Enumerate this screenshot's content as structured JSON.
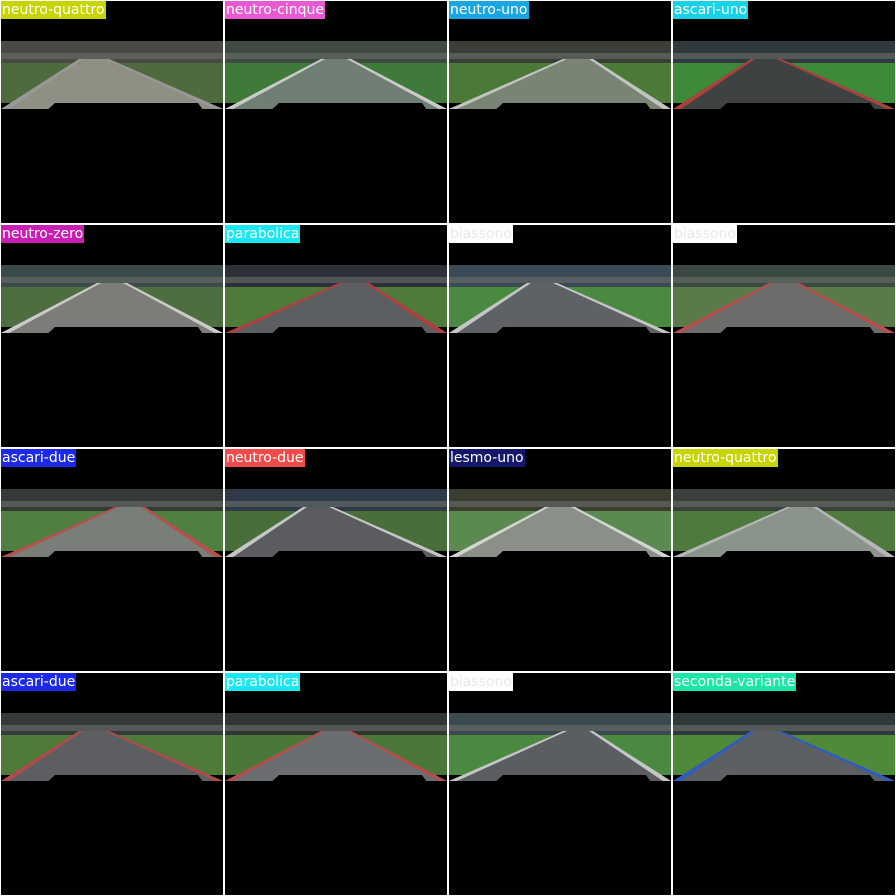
{
  "tiles": [
    {
      "label": "neutro-quattro",
      "label_bg": "#c8d400",
      "label_fg": "#ffffff",
      "road": "#8f8f84",
      "grass": "#4f6b3e",
      "sky": "#4a4a44",
      "curb": "#9a9a9a"
    },
    {
      "label": "neutro-cinque",
      "label_bg": "#e85ad2",
      "label_fg": "#ffffff",
      "road": "#6f7f74",
      "grass": "#3f7a3a",
      "sky": "#3f4a40",
      "curb": "#d8d8d8"
    },
    {
      "label": "neutro-uno",
      "label_bg": "#1aa6e0",
      "label_fg": "#ffffff",
      "road": "#7a8474",
      "grass": "#4a7a36",
      "sky": "#3a3f36",
      "curb": "#cfcfcf"
    },
    {
      "label": "ascari-uno",
      "label_bg": "#18d2e8",
      "label_fg": "#ffffff",
      "road": "#3e4242",
      "grass": "#3f8a3a",
      "sky": "#2e3a3e",
      "curb": "#c0403a"
    },
    {
      "label": "neutro-zero",
      "label_bg": "#c81eb4",
      "label_fg": "#ffffff",
      "road": "#7c7c78",
      "grass": "#4e6e40",
      "sky": "#3a4a4a",
      "curb": "#d8d8d8"
    },
    {
      "label": "parabolica",
      "label_bg": "#1ce6f0",
      "label_fg": "#ffffff",
      "road": "#5c5f62",
      "grass": "#4f7a3a",
      "sky": "#2c3038",
      "curb": "#c03a3a"
    },
    {
      "label": "biassono",
      "label_bg": "#ffffff",
      "label_fg": "#e8e8e8",
      "road": "#5e6266",
      "grass": "#4a8a40",
      "sky": "#3a4a56",
      "curb": "#d8d8d8"
    },
    {
      "label": "biassono",
      "label_bg": "#ffffff",
      "label_fg": "#e8e8e8",
      "road": "#6c6c6a",
      "grass": "#5a7a48",
      "sky": "#3a4a40",
      "curb": "#c84848"
    },
    {
      "label": "ascari-due",
      "label_bg": "#1a2ae6",
      "label_fg": "#ffffff",
      "road": "#7a7e78",
      "grass": "#4f8040",
      "sky": "#343a36",
      "curb": "#c04848"
    },
    {
      "label": "neutro-due",
      "label_bg": "#f04a4a",
      "label_fg": "#ffffff",
      "road": "#5a5c60",
      "grass": "#4a6e3a",
      "sky": "#2e3a48",
      "curb": "#d8d8d8"
    },
    {
      "label": "lesmo-uno",
      "label_bg": "#14186a",
      "label_fg": "#ffffff",
      "road": "#8a9088",
      "grass": "#5a8a50",
      "sky": "#3a3e2e",
      "curb": "#e0e0e0"
    },
    {
      "label": "neutro-quattro",
      "label_bg": "#c8d400",
      "label_fg": "#ffffff",
      "road": "#8a948a",
      "grass": "#4e7a3e",
      "sky": "#3a403a",
      "curb": "#bdbdbd"
    },
    {
      "label": "ascari-due",
      "label_bg": "#1a2ae6",
      "label_fg": "#ffffff",
      "road": "#5c5e62",
      "grass": "#4f7a3a",
      "sky": "#343a3a",
      "curb": "#c04848"
    },
    {
      "label": "parabolica",
      "label_bg": "#1ce6f0",
      "label_fg": "#ffffff",
      "road": "#6a6e70",
      "grass": "#4a7838",
      "sky": "#303634",
      "curb": "#c04848"
    },
    {
      "label": "biassono",
      "label_bg": "#ffffff",
      "label_fg": "#e8e8e8",
      "road": "#5a5e60",
      "grass": "#4a8a40",
      "sky": "#3a4a50",
      "curb": "#d8d8d8"
    },
    {
      "label": "seconda-variante",
      "label_bg": "#1ae6a8",
      "label_fg": "#ffffff",
      "road": "#5c6064",
      "grass": "#4f8a3a",
      "sky": "#2e3a3a",
      "curb": "#2a5ad0"
    }
  ]
}
